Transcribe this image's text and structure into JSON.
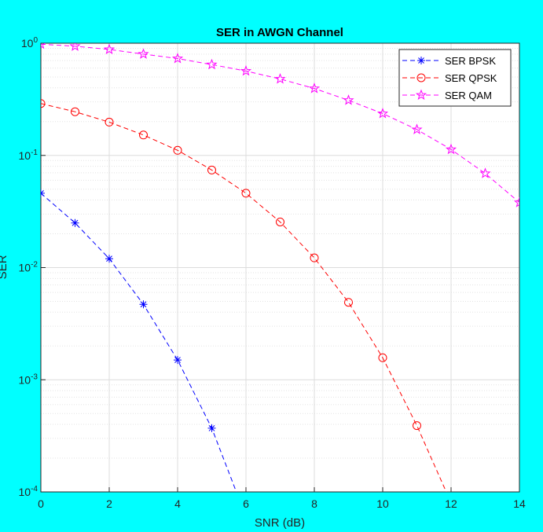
{
  "chart_data": {
    "type": "line",
    "title": "SER  in AWGN Channel",
    "xlabel": "SNR (dB)",
    "ylabel": "SER",
    "x": [
      0,
      1,
      2,
      3,
      4,
      5,
      6,
      7,
      8,
      9,
      10,
      11,
      12,
      13,
      14
    ],
    "series": [
      {
        "name": "SER BPSK",
        "color": "#0000ff",
        "marker": "asterisk",
        "values": [
          0.046,
          0.025,
          0.012,
          0.0047,
          0.0015,
          0.00037,
          6e-05,
          null,
          null,
          null,
          null,
          null,
          null,
          null,
          null
        ]
      },
      {
        "name": "SER QPSK",
        "color": "#ff0000",
        "marker": "circle",
        "values": [
          0.29,
          0.245,
          0.198,
          0.152,
          0.111,
          0.074,
          0.046,
          0.0255,
          0.0122,
          0.0049,
          0.00157,
          0.00039,
          8e-05,
          null,
          null
        ]
      },
      {
        "name": "SER QAM",
        "color": "#ff00ff",
        "marker": "pentagram",
        "values": [
          0.98,
          0.94,
          0.88,
          0.8,
          0.73,
          0.645,
          0.565,
          0.48,
          0.395,
          0.31,
          0.236,
          0.17,
          0.113,
          0.069,
          0.038
        ]
      }
    ],
    "xlim": [
      0,
      14
    ],
    "xticks": [
      0,
      2,
      4,
      6,
      8,
      10,
      12,
      14
    ],
    "ylim": [
      0.0001,
      1
    ],
    "log_y": true,
    "yticks": [
      {
        "value": 0.0001,
        "label": "10^-4"
      },
      {
        "value": 0.001,
        "label": "10^-3"
      },
      {
        "value": 0.01,
        "label": "10^-2"
      },
      {
        "value": 0.1,
        "label": "10^-1"
      },
      {
        "value": 1,
        "label": "10^0"
      }
    ],
    "grid": true,
    "minor_grid": true,
    "legend": "northeast"
  }
}
